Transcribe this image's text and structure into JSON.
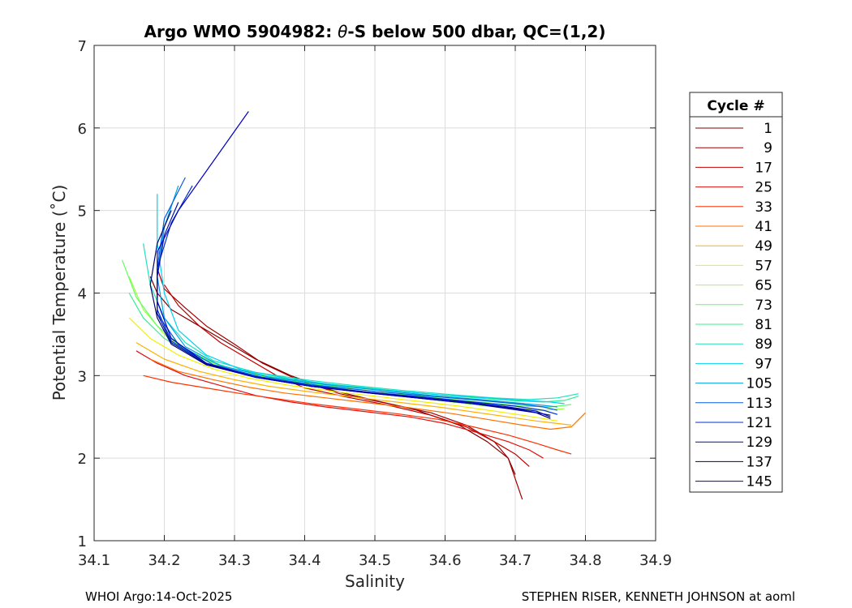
{
  "chart_data": {
    "type": "line",
    "title_parts": [
      "Argo WMO 5904982: ",
      "θ",
      "-S below 500 dbar,  QC=(1,2)"
    ],
    "xlabel": "Salinity",
    "ylabel": "Potential Temperature (˚C)",
    "xlim": [
      34.1,
      34.9
    ],
    "ylim": [
      1,
      7
    ],
    "xticks": [
      34.1,
      34.2,
      34.3,
      34.4,
      34.5,
      34.6,
      34.7,
      34.8,
      34.9
    ],
    "xtick_labels": [
      "34.1",
      "34.2",
      "34.3",
      "34.4",
      "34.5",
      "34.6",
      "34.7",
      "34.8",
      "34.9"
    ],
    "yticks": [
      1,
      2,
      3,
      4,
      5,
      6,
      7
    ],
    "ytick_labels": [
      "1",
      "2",
      "3",
      "4",
      "5",
      "6",
      "7"
    ],
    "grid": true,
    "legend": {
      "title": "Cycle #",
      "position": "right",
      "entries": [
        {
          "label": "1",
          "color": "#800000"
        },
        {
          "label": "9",
          "color": "#a00000"
        },
        {
          "label": "17",
          "color": "#c00000"
        },
        {
          "label": "25",
          "color": "#e01010"
        },
        {
          "label": "33",
          "color": "#ff3000"
        },
        {
          "label": "41",
          "color": "#ff7000"
        },
        {
          "label": "49",
          "color": "#ffb000"
        },
        {
          "label": "57",
          "color": "#f0f000"
        },
        {
          "label": "65",
          "color": "#a0ff40"
        },
        {
          "label": "73",
          "color": "#60ff60"
        },
        {
          "label": "81",
          "color": "#30f090"
        },
        {
          "label": "89",
          "color": "#20e0c0"
        },
        {
          "label": "97",
          "color": "#00d0f0"
        },
        {
          "label": "105",
          "color": "#00a0e0"
        },
        {
          "label": "113",
          "color": "#0060e0"
        },
        {
          "label": "121",
          "color": "#0030d0"
        },
        {
          "label": "129",
          "color": "#0010a0"
        },
        {
          "label": "137",
          "color": "#000070"
        },
        {
          "label": "145",
          "color": "#0000c0"
        }
      ]
    },
    "series": [
      {
        "name": "1",
        "color": "#800000",
        "x": [
          34.18,
          34.19,
          34.21,
          34.25,
          34.29,
          34.33,
          34.38,
          34.44,
          34.5,
          34.56,
          34.62,
          34.66,
          34.69,
          34.7
        ],
        "y": [
          4.2,
          4.0,
          3.8,
          3.6,
          3.4,
          3.2,
          3.0,
          2.82,
          2.7,
          2.58,
          2.4,
          2.2,
          2.0,
          1.8
        ]
      },
      {
        "name": "9",
        "color": "#a00000",
        "x": [
          34.19,
          34.2,
          34.23,
          34.26,
          34.3,
          34.34,
          34.39,
          34.45,
          34.52,
          34.58,
          34.63,
          34.67,
          34.69,
          34.71
        ],
        "y": [
          4.3,
          4.05,
          3.82,
          3.6,
          3.38,
          3.15,
          2.95,
          2.78,
          2.66,
          2.55,
          2.4,
          2.2,
          2.0,
          1.5
        ]
      },
      {
        "name": "17",
        "color": "#c00000",
        "x": [
          34.2,
          34.22,
          34.25,
          34.28,
          34.32,
          34.36,
          34.4,
          34.46,
          34.52,
          34.58,
          34.63,
          34.67,
          34.7,
          34.72
        ],
        "y": [
          4.1,
          3.85,
          3.6,
          3.4,
          3.2,
          3.0,
          2.85,
          2.74,
          2.64,
          2.52,
          2.38,
          2.2,
          2.05,
          1.9
        ]
      },
      {
        "name": "25",
        "color": "#e01010",
        "x": [
          34.16,
          34.19,
          34.23,
          34.28,
          34.33,
          34.38,
          34.43,
          34.49,
          34.55,
          34.6,
          34.65,
          34.69,
          34.72,
          34.74
        ],
        "y": [
          3.3,
          3.15,
          3.0,
          2.88,
          2.76,
          2.68,
          2.62,
          2.56,
          2.5,
          2.42,
          2.3,
          2.2,
          2.1,
          2.0
        ]
      },
      {
        "name": "33",
        "color": "#ff3000",
        "x": [
          34.17,
          34.21,
          34.26,
          34.31,
          34.36,
          34.41,
          34.47,
          34.53,
          34.59,
          34.64,
          34.69,
          34.73,
          34.76,
          34.78
        ],
        "y": [
          3.0,
          2.92,
          2.85,
          2.78,
          2.72,
          2.66,
          2.6,
          2.54,
          2.47,
          2.38,
          2.28,
          2.18,
          2.1,
          2.05
        ]
      },
      {
        "name": "41",
        "color": "#ff7000",
        "x": [
          34.18,
          34.22,
          34.27,
          34.32,
          34.37,
          34.43,
          34.49,
          34.55,
          34.61,
          34.66,
          34.71,
          34.75,
          34.78,
          34.8
        ],
        "y": [
          3.2,
          3.05,
          2.95,
          2.86,
          2.79,
          2.73,
          2.67,
          2.61,
          2.54,
          2.47,
          2.4,
          2.35,
          2.38,
          2.55
        ]
      },
      {
        "name": "49",
        "color": "#ffb000",
        "x": [
          34.16,
          34.2,
          34.25,
          34.3,
          34.35,
          34.41,
          34.47,
          34.53,
          34.59,
          34.64,
          34.69,
          34.73,
          34.76,
          34.78
        ],
        "y": [
          3.4,
          3.2,
          3.05,
          2.95,
          2.87,
          2.8,
          2.74,
          2.68,
          2.62,
          2.56,
          2.5,
          2.45,
          2.42,
          2.4
        ]
      },
      {
        "name": "57",
        "color": "#f0f000",
        "x": [
          34.15,
          34.18,
          34.22,
          34.27,
          34.32,
          34.38,
          34.44,
          34.5,
          34.56,
          34.62,
          34.67,
          34.71,
          34.74,
          34.76
        ],
        "y": [
          3.7,
          3.45,
          3.25,
          3.08,
          2.97,
          2.88,
          2.81,
          2.75,
          2.69,
          2.63,
          2.57,
          2.52,
          2.48,
          2.45
        ]
      },
      {
        "name": "65",
        "color": "#a0ff40",
        "x": [
          34.15,
          34.17,
          34.2,
          34.24,
          34.29,
          34.35,
          34.41,
          34.47,
          34.53,
          34.59,
          34.65,
          34.7,
          34.74,
          34.77
        ],
        "y": [
          4.2,
          3.8,
          3.5,
          3.25,
          3.08,
          2.97,
          2.89,
          2.82,
          2.76,
          2.7,
          2.64,
          2.6,
          2.58,
          2.6
        ]
      },
      {
        "name": "73",
        "color": "#60ff60",
        "x": [
          34.14,
          34.16,
          34.19,
          34.23,
          34.28,
          34.34,
          34.4,
          34.47,
          34.53,
          34.6,
          34.66,
          34.71,
          34.75,
          34.78
        ],
        "y": [
          4.4,
          3.95,
          3.6,
          3.32,
          3.12,
          3.0,
          2.91,
          2.84,
          2.78,
          2.72,
          2.67,
          2.63,
          2.62,
          2.65
        ]
      },
      {
        "name": "81",
        "color": "#30f090",
        "x": [
          34.15,
          34.17,
          34.2,
          34.24,
          34.29,
          34.35,
          34.42,
          34.49,
          34.56,
          34.63,
          34.69,
          34.74,
          34.77,
          34.79
        ],
        "y": [
          4.0,
          3.7,
          3.45,
          3.25,
          3.1,
          2.99,
          2.91,
          2.85,
          2.79,
          2.74,
          2.7,
          2.68,
          2.7,
          2.75
        ]
      },
      {
        "name": "89",
        "color": "#20e0c0",
        "x": [
          34.17,
          34.18,
          34.2,
          34.23,
          34.27,
          34.33,
          34.4,
          34.47,
          34.54,
          34.61,
          34.67,
          34.72,
          34.76,
          34.79
        ],
        "y": [
          4.6,
          4.1,
          3.7,
          3.4,
          3.18,
          3.04,
          2.95,
          2.88,
          2.82,
          2.77,
          2.73,
          2.71,
          2.73,
          2.78
        ]
      },
      {
        "name": "97",
        "color": "#00d0f0",
        "x": [
          34.19,
          34.19,
          34.2,
          34.22,
          34.26,
          34.31,
          34.38,
          34.45,
          34.52,
          34.59,
          34.66,
          34.71,
          34.75,
          34.77
        ],
        "y": [
          5.2,
          4.6,
          4.0,
          3.55,
          3.25,
          3.07,
          2.96,
          2.88,
          2.82,
          2.77,
          2.73,
          2.7,
          2.68,
          2.66
        ]
      },
      {
        "name": "105",
        "color": "#00a0e0",
        "x": [
          34.22,
          34.2,
          34.19,
          34.2,
          34.23,
          34.28,
          34.35,
          34.43,
          34.51,
          34.58,
          34.65,
          34.7,
          34.74,
          34.76
        ],
        "y": [
          5.3,
          4.8,
          4.2,
          3.7,
          3.35,
          3.12,
          2.98,
          2.89,
          2.82,
          2.76,
          2.71,
          2.67,
          2.64,
          2.62
        ]
      },
      {
        "name": "113",
        "color": "#0060e0",
        "x": [
          34.23,
          34.2,
          34.19,
          34.19,
          34.22,
          34.27,
          34.34,
          34.42,
          34.5,
          34.58,
          34.65,
          34.7,
          34.74,
          34.76
        ],
        "y": [
          5.4,
          4.9,
          4.3,
          3.75,
          3.38,
          3.13,
          2.98,
          2.88,
          2.81,
          2.75,
          2.7,
          2.66,
          2.62,
          2.58
        ]
      },
      {
        "name": "121",
        "color": "#0030d0",
        "x": [
          34.24,
          34.21,
          34.19,
          34.19,
          34.21,
          34.26,
          34.33,
          34.41,
          34.49,
          34.57,
          34.64,
          34.7,
          34.74,
          34.76
        ],
        "y": [
          5.3,
          4.85,
          4.3,
          3.8,
          3.42,
          3.15,
          2.99,
          2.88,
          2.8,
          2.74,
          2.68,
          2.63,
          2.58,
          2.53
        ]
      },
      {
        "name": "129",
        "color": "#0010a0",
        "x": [
          34.22,
          34.2,
          34.19,
          34.19,
          34.21,
          34.26,
          34.33,
          34.41,
          34.49,
          34.57,
          34.64,
          34.69,
          34.73,
          34.75
        ],
        "y": [
          5.1,
          4.7,
          4.2,
          3.75,
          3.4,
          3.14,
          2.98,
          2.87,
          2.8,
          2.73,
          2.67,
          2.62,
          2.57,
          2.5
        ]
      },
      {
        "name": "137",
        "color": "#000070",
        "x": [
          34.21,
          34.19,
          34.18,
          34.19,
          34.21,
          34.26,
          34.33,
          34.41,
          34.49,
          34.57,
          34.64,
          34.69,
          34.73,
          34.75
        ],
        "y": [
          5.0,
          4.6,
          4.1,
          3.7,
          3.38,
          3.13,
          2.98,
          2.87,
          2.79,
          2.72,
          2.66,
          2.6,
          2.55,
          2.48
        ]
      },
      {
        "name": "145",
        "color": "#0000c0",
        "x": [
          34.32,
          34.27,
          34.22,
          34.19,
          34.19,
          34.21,
          34.26,
          34.33,
          34.41,
          34.49,
          34.57,
          34.64,
          34.7,
          34.75
        ],
        "y": [
          6.2,
          5.6,
          5.0,
          4.5,
          3.9,
          3.45,
          3.15,
          2.98,
          2.87,
          2.79,
          2.72,
          2.66,
          2.6,
          2.52
        ]
      }
    ]
  },
  "footer": {
    "left": "WHOI Argo:14-Oct-2025",
    "right": "STEPHEN RISER, KENNETH JOHNSON at aoml"
  }
}
